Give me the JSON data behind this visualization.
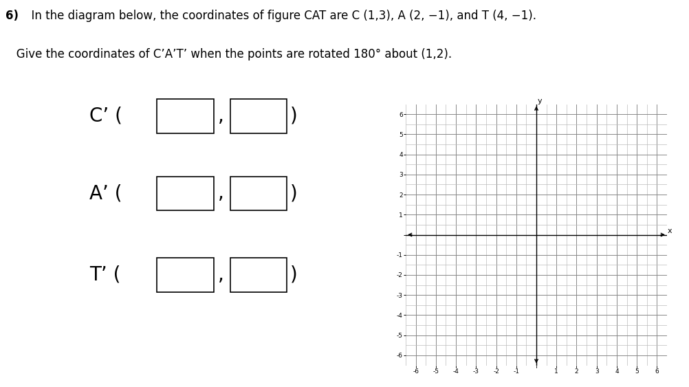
{
  "title_bold": "6)",
  "title_rest_line1": "  In the diagram below, the coordinates of figure CAT are C (1,3), A (2, −1), and T (4, −1).",
  "title_line2": "   Give the coordinates of C’A’T’ when the points are rotated 180° about (1,2).",
  "label_C": "C’ (",
  "label_A": "A’ (",
  "label_T": "T’ (",
  "close_paren": ")",
  "comma": ",",
  "background_color": "#ffffff",
  "text_color": "#000000",
  "grid_minor_color": "#bbbbbb",
  "grid_major_color": "#888888",
  "axis_color": "#000000",
  "grid_xlim": [
    -6.5,
    6.5
  ],
  "grid_ylim": [
    -6.5,
    6.5
  ],
  "grid_xticks": [
    -6,
    -5,
    -4,
    -3,
    -2,
    -1,
    0,
    1,
    2,
    3,
    4,
    5,
    6
  ],
  "grid_yticks": [
    -6,
    -5,
    -4,
    -3,
    -2,
    -1,
    0,
    1,
    2,
    3,
    4,
    5,
    6
  ],
  "box_color": "#ffffff",
  "box_edge_color": "#000000",
  "label_fontsize": 20,
  "title_fontsize": 12
}
